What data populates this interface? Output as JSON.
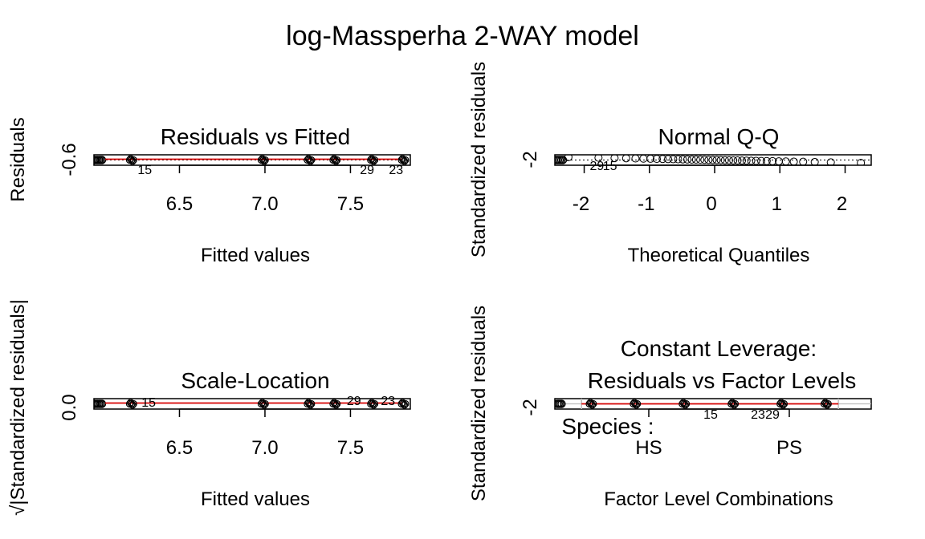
{
  "title": "log-Massperha 2-WAY model",
  "chart_data": [
    {
      "type": "scatter",
      "panel": "top-left",
      "title": "Residuals vs Fitted",
      "xlabel": "Fitted values",
      "ylabel": "Residuals",
      "xlim": [
        6.0,
        7.85
      ],
      "xticks": [
        "6.5",
        "7.0",
        "7.5"
      ],
      "ytick": "-0.6",
      "fitted_levels": [
        6.22,
        6.99,
        7.26,
        7.41,
        7.63,
        7.81
      ],
      "smoother": "red",
      "labeled_points": [
        {
          "label": "15",
          "x": 6.25
        },
        {
          "label": "29",
          "x": 7.55
        },
        {
          "label": "23",
          "x": 7.72
        }
      ]
    },
    {
      "type": "scatter",
      "panel": "top-right",
      "title": "Normal Q-Q",
      "xlabel": "Theoretical Quantiles",
      "ylabel": "Standardized residuals",
      "xlim": [
        -2.45,
        2.4
      ],
      "xticks": [
        "-2",
        "-1",
        "0",
        "1",
        "2"
      ],
      "ytick": "-2",
      "labeled_points": [
        {
          "label": "29",
          "x": -2.1
        },
        {
          "label": "15",
          "x": -1.9
        }
      ]
    },
    {
      "type": "scatter",
      "panel": "bottom-left",
      "title": "Scale-Location",
      "xlabel": "Fitted values",
      "ylabel": "√|Standardized residuals|",
      "xlim": [
        6.0,
        7.85
      ],
      "xticks": [
        "6.5",
        "7.0",
        "7.5"
      ],
      "ytick": "0.0",
      "labeled_points": [
        {
          "label": "15",
          "x": 6.32
        },
        {
          "label": "29",
          "x": 7.52
        },
        {
          "label": "23",
          "x": 7.72
        }
      ]
    },
    {
      "type": "scatter",
      "panel": "bottom-right",
      "title_line1": "Constant Leverage:",
      "title_line2": "Residuals vs Factor Levels",
      "xlabel": "Factor Level Combinations",
      "ylabel": "Standardized residuals",
      "ytick": "-2",
      "factor_label": "Species :",
      "levels": [
        "HS",
        "PS"
      ],
      "labeled_points": [
        {
          "label": "15",
          "x": 1.2
        },
        {
          "label": "23",
          "x": 2.0
        },
        {
          "label": "29",
          "x": 2.2
        }
      ]
    }
  ]
}
